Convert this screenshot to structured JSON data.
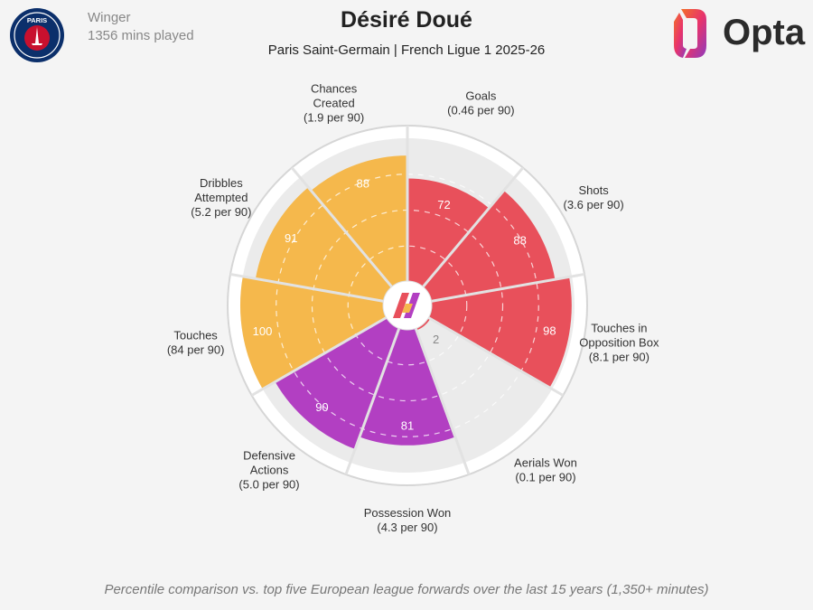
{
  "header": {
    "position": "Winger",
    "minutes": "1356 mins played",
    "player_name": "Désiré Doué",
    "team_competition": "Paris Saint-Germain | French Ligue 1 2025-26",
    "brand": "Opta",
    "club_logo_text": "PARIS"
  },
  "footnote": "Percentile comparison vs. top five European league forwards over the last 15 years (1,350+ minutes)",
  "colors": {
    "attacking": "#e8505b",
    "possession": "#f5b84c",
    "defending": "#b23fc2",
    "track": "#ebebeb",
    "background": "#f4f4f4"
  },
  "chart_data": {
    "type": "polar-bar",
    "scale_max": 100,
    "segments": [
      {
        "stat": "Goals",
        "per90": "(0.46 per 90)",
        "percentile": 72,
        "group": "attacking"
      },
      {
        "stat": "Shots",
        "per90": "(3.6 per 90)",
        "percentile": 88,
        "group": "attacking"
      },
      {
        "stat": "Touches in Opposition Box",
        "per90": "(8.1 per 90)",
        "percentile": 98,
        "group": "attacking"
      },
      {
        "stat": "Aerials Won",
        "per90": "(0.1 per 90)",
        "percentile": 2,
        "group": "attacking"
      },
      {
        "stat": "Possession Won",
        "per90": "(4.3 per 90)",
        "percentile": 81,
        "group": "defending"
      },
      {
        "stat": "Defensive Actions",
        "per90": "(5.0 per 90)",
        "percentile": 90,
        "group": "defending"
      },
      {
        "stat": "Touches",
        "per90": "(84 per 90)",
        "percentile": 100,
        "group": "possession"
      },
      {
        "stat": "Dribbles Attempted",
        "per90": "(5.2 per 90)",
        "percentile": 91,
        "group": "possession"
      },
      {
        "stat": "Chances Created",
        "per90": "(1.9 per 90)",
        "percentile": 88,
        "group": "possession"
      }
    ]
  }
}
